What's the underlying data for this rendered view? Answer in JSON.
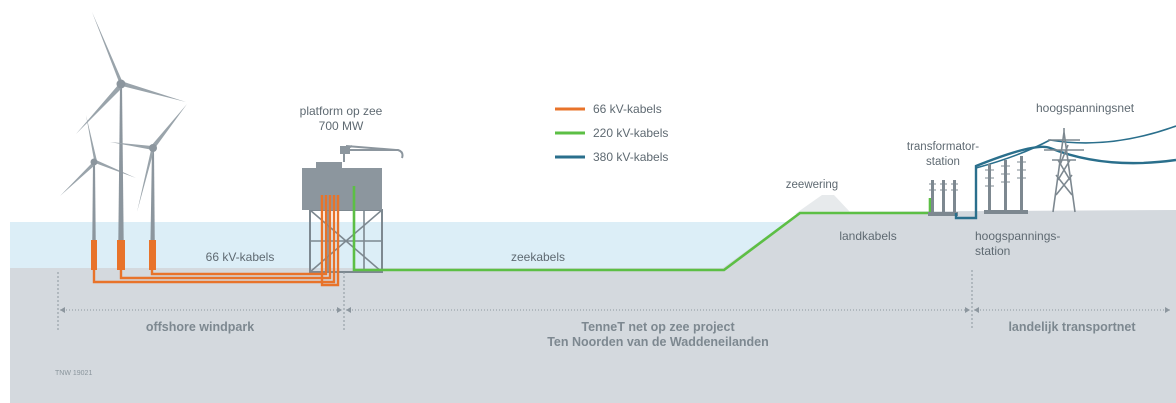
{
  "labels": {
    "platform_line1": "platform op zee",
    "platform_line2": "700 MW",
    "legend_66": "66 kV-kabels",
    "legend_220": "220 kV-kabels",
    "legend_380": "380 kV-kabels",
    "hoogspanningsnet": "hoogspanningsnet",
    "transformator_line1": "transformator-",
    "transformator_line2": "station",
    "zeewering": "zeewering",
    "kabels_66": "66 kV-kabels",
    "zeekabels": "zeekabels",
    "landkabels": "landkabels",
    "hoogspannings_line1": "hoogspannings-",
    "hoogspannings_line2": "station",
    "zone_offshore": "offshore windpark",
    "zone_tennet_line1": "TenneT net op zee project",
    "zone_tennet_line2": "Ten Noorden van de Waddeneilanden",
    "zone_landelijk": "landelijk transportnet",
    "code": "TNW 19021"
  },
  "colors": {
    "cable_66kv": "#e8732a",
    "cable_220kv": "#5cbf45",
    "cable_380kv": "#2a6f8c",
    "sea_surface": "#dceef7",
    "seabed": "#d4d9de",
    "structure": "#7d8890"
  }
}
